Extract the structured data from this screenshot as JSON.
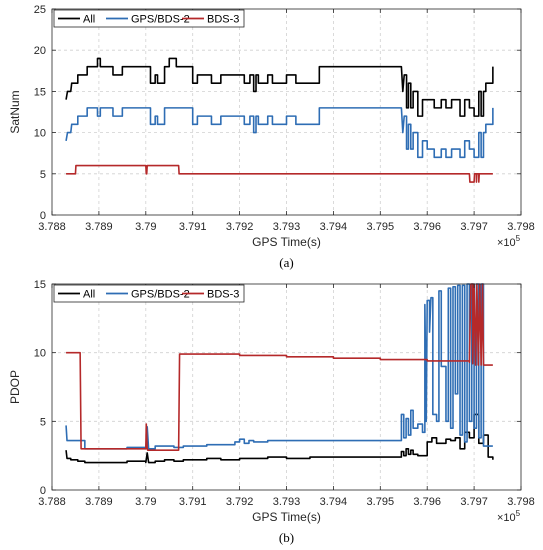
{
  "chart_data": [
    {
      "type": "line",
      "panel_label": "(a)",
      "xlabel": "GPS Time(s)",
      "ylabel": "SatNum",
      "xlim": [
        378800,
        379800
      ],
      "ylim": [
        0,
        25
      ],
      "x_ticks": [
        378800,
        378900,
        379000,
        379100,
        379200,
        379300,
        379400,
        379500,
        379600,
        379700,
        379800
      ],
      "x_tick_labels": [
        "3.788",
        "3.789",
        "3.79",
        "3.791",
        "3.792",
        "3.793",
        "3.794",
        "3.795",
        "3.796",
        "3.797",
        "3.798"
      ],
      "y_ticks": [
        0,
        5,
        10,
        15,
        20,
        25
      ],
      "x_exponent_label": "×10",
      "x_exponent_power": "5",
      "grid": true,
      "legend_position": "top-left",
      "colors": {
        "All": "#000000",
        "GPS/BDS-2": "#2e6db4",
        "BDS-3": "#b5292a"
      },
      "series": [
        {
          "name": "All",
          "x": [
            378830,
            378833,
            378840,
            378842,
            378850,
            378855,
            378862,
            378875,
            378880,
            378893,
            378897,
            378903,
            378915,
            378930,
            378940,
            378950,
            378955,
            379000,
            379010,
            379020,
            379025,
            379040,
            379050,
            379065,
            379080,
            379100,
            379110,
            379130,
            379140,
            379160,
            379170,
            379200,
            379210,
            379222,
            379230,
            379235,
            379240,
            379260,
            379270,
            379280,
            379300,
            379320,
            379370,
            379400,
            379450,
            379500,
            379545,
            379548,
            379551,
            379556,
            379560,
            379565,
            379570,
            379580,
            379590,
            379600,
            379615,
            379630,
            379640,
            379652,
            379660,
            379670,
            379680,
            379690,
            379700,
            379710,
            379715,
            379720,
            379725,
            379730,
            379740
          ],
          "y": [
            14,
            15,
            15,
            16,
            16,
            17,
            17,
            18,
            18,
            18,
            19,
            18,
            18,
            17,
            17,
            18,
            18,
            18,
            16,
            17,
            16,
            18,
            19,
            18,
            18,
            16,
            17,
            17,
            16,
            17,
            17,
            17,
            16,
            17,
            15,
            17,
            16,
            17,
            16,
            16,
            17,
            16,
            18,
            18,
            18,
            18,
            18,
            15,
            17,
            13,
            16,
            13,
            15,
            12,
            14,
            14,
            13,
            14,
            13,
            14,
            14,
            12,
            14,
            13,
            12,
            15,
            12,
            15,
            16,
            16,
            18
          ]
        },
        {
          "name": "GPS/BDS-2",
          "x": [
            378830,
            378833,
            378840,
            378842,
            378850,
            378855,
            378862,
            378875,
            378880,
            378893,
            378897,
            378903,
            378915,
            378930,
            378940,
            378950,
            378955,
            379000,
            379010,
            379020,
            379025,
            379040,
            379050,
            379065,
            379080,
            379100,
            379110,
            379130,
            379140,
            379160,
            379170,
            379200,
            379210,
            379222,
            379230,
            379235,
            379240,
            379260,
            379270,
            379280,
            379300,
            379320,
            379370,
            379400,
            379450,
            379500,
            379545,
            379548,
            379551,
            379556,
            379560,
            379565,
            379570,
            379580,
            379590,
            379600,
            379615,
            379630,
            379640,
            379652,
            379660,
            379670,
            379680,
            379690,
            379700,
            379710,
            379715,
            379720,
            379725,
            379730,
            379740
          ],
          "y": [
            9,
            10,
            10,
            11,
            11,
            12,
            12,
            13,
            13,
            13,
            12,
            13,
            13,
            12,
            12,
            13,
            13,
            13,
            11,
            12,
            11,
            13,
            13,
            13,
            13,
            11,
            12,
            12,
            11,
            12,
            12,
            12,
            11,
            12,
            10,
            12,
            11,
            12,
            11,
            11,
            12,
            11,
            13,
            13,
            13,
            13,
            13,
            10,
            12,
            8,
            11,
            8,
            10,
            7,
            9,
            8,
            7,
            8,
            7,
            8,
            8,
            7,
            9,
            8,
            7,
            10,
            7,
            10,
            11,
            11,
            13
          ]
        },
        {
          "name": "BDS-3",
          "x": [
            378830,
            378850,
            378851,
            379000,
            379001,
            379002,
            379003,
            379070,
            379071,
            379200,
            379400,
            379600,
            379690,
            379691,
            379700,
            379701,
            379705,
            379706,
            379710,
            379711,
            379740
          ],
          "y": [
            5,
            5,
            6,
            6,
            5,
            5,
            6,
            6,
            5,
            5,
            5,
            5,
            5,
            4,
            4,
            5,
            4,
            5,
            4,
            5,
            5
          ]
        }
      ]
    },
    {
      "type": "line",
      "panel_label": "(b)",
      "xlabel": "GPS Time(s)",
      "ylabel": "PDOP",
      "xlim": [
        378800,
        379800
      ],
      "ylim": [
        0,
        15
      ],
      "x_ticks": [
        378800,
        378900,
        379000,
        379100,
        379200,
        379300,
        379400,
        379500,
        379600,
        379700,
        379800
      ],
      "x_tick_labels": [
        "3.788",
        "3.789",
        "3.79",
        "3.791",
        "3.792",
        "3.793",
        "3.794",
        "3.795",
        "3.796",
        "3.797",
        "3.798"
      ],
      "y_ticks": [
        0,
        5,
        10,
        15
      ],
      "x_exponent_label": "×10",
      "x_exponent_power": "5",
      "grid": true,
      "legend_position": "top-left",
      "colors": {
        "All": "#000000",
        "GPS/BDS-2": "#2e6db4",
        "BDS-3": "#b5292a"
      },
      "series": [
        {
          "name": "All",
          "x": [
            378830,
            378832,
            378840,
            378855,
            378870,
            378900,
            378930,
            378960,
            379000,
            379003,
            379006,
            379020,
            379040,
            379060,
            379080,
            379100,
            379130,
            379160,
            379200,
            379230,
            379260,
            379300,
            379350,
            379400,
            379450,
            379500,
            379540,
            379545,
            379550,
            379555,
            379560,
            379565,
            379570,
            379580,
            379590,
            379600,
            379610,
            379620,
            379640,
            379650,
            379660,
            379670,
            379680,
            379690,
            379700,
            379710,
            379720,
            379730,
            379740
          ],
          "y": [
            2.9,
            2.3,
            2.2,
            2.1,
            2.0,
            2.0,
            2.0,
            2.1,
            2.0,
            2.7,
            2.0,
            2.1,
            2.2,
            2.1,
            2.2,
            2.2,
            2.3,
            2.2,
            2.3,
            2.3,
            2.4,
            2.3,
            2.4,
            2.4,
            2.4,
            2.4,
            2.4,
            2.8,
            2.5,
            3.0,
            2.6,
            2.9,
            2.6,
            2.5,
            2.5,
            3.5,
            3.8,
            3.4,
            3.7,
            3.6,
            3.8,
            3.0,
            4.2,
            3.8,
            5.5,
            3.4,
            4.0,
            2.4,
            2.2
          ]
        },
        {
          "name": "GPS/BDS-2",
          "x": [
            378830,
            378832,
            378840,
            378860,
            378870,
            378900,
            378930,
            378960,
            379000,
            379003,
            379006,
            379020,
            379040,
            379060,
            379080,
            379100,
            379130,
            379160,
            379190,
            379200,
            379210,
            379220,
            379230,
            379260,
            379300,
            379350,
            379400,
            379450,
            379500,
            379540,
            379545,
            379550,
            379555,
            379560,
            379565,
            379570,
            379580,
            379590,
            379595,
            379598,
            379600,
            379605,
            379608,
            379612,
            379620,
            379625,
            379630,
            379640,
            379645,
            379650,
            379655,
            379660,
            379665,
            379670,
            379675,
            379680,
            379685,
            379690,
            379695,
            379700,
            379705,
            379710,
            379715,
            379720,
            379740
          ],
          "y": [
            4.7,
            3.6,
            3.6,
            3.6,
            3.0,
            3.0,
            3.0,
            3.1,
            3.0,
            4.6,
            3.0,
            3.2,
            3.2,
            3.1,
            3.2,
            3.2,
            3.3,
            3.3,
            3.5,
            3.7,
            3.4,
            3.6,
            3.5,
            3.6,
            3.6,
            3.6,
            3.6,
            3.6,
            3.6,
            3.6,
            5.5,
            3.8,
            5.2,
            4.0,
            5.8,
            4.5,
            4.8,
            4.2,
            13.5,
            5.0,
            13.8,
            11.5,
            14.0,
            5.5,
            5.0,
            14.5,
            9.0,
            5.0,
            14.7,
            4.5,
            14.8,
            7.0,
            14.9,
            4.0,
            14.9,
            3.5,
            15.0,
            5.0,
            15.0,
            4.5,
            15.0,
            3.8,
            15.0,
            3.2,
            3.2
          ]
        },
        {
          "name": "BDS-3",
          "x": [
            378830,
            378860,
            378862,
            378900,
            379000,
            379001,
            379003,
            379004,
            379070,
            379072,
            379100,
            379200,
            379300,
            379400,
            379500,
            379600,
            379690,
            379693,
            379697,
            379700,
            379703,
            379706,
            379709,
            379712,
            379715,
            379718,
            379720,
            379740
          ],
          "y": [
            10.0,
            10.0,
            3.0,
            3.0,
            3.0,
            4.8,
            3.0,
            2.9,
            2.9,
            9.9,
            9.9,
            9.8,
            9.7,
            9.6,
            9.5,
            9.4,
            9.3,
            15,
            9.2,
            15,
            9.1,
            15,
            9.1,
            15,
            9.1,
            15,
            9.1,
            9.1
          ]
        }
      ]
    }
  ]
}
